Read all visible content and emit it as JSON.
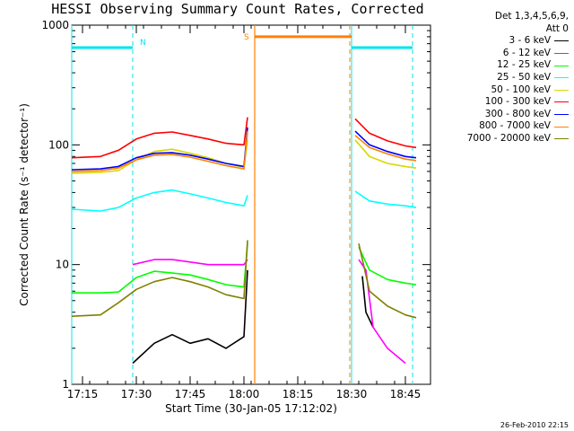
{
  "chart_data": {
    "type": "line",
    "title": "HESSI Observing Summary Count Rates, Corrected",
    "xlabel": "Start Time (30-Jan-05 17:12:02)",
    "ylabel": "Corrected Count Rate (s⁻¹ detector⁻¹)",
    "yscale": "log",
    "ylim": [
      1,
      1000
    ],
    "xlim": [
      "17:12",
      "18:52"
    ],
    "x_ticks": [
      "17:15",
      "17:30",
      "17:45",
      "18:00",
      "18:15",
      "18:30",
      "18:45"
    ],
    "y_ticks": [
      "1",
      "10",
      "100",
      "1000"
    ],
    "legend_header": [
      "Det 1,3,4,5,6,9,",
      "Att 0"
    ],
    "legend_position": "right",
    "data_gap": [
      "18:03",
      "18:31"
    ],
    "series": [
      {
        "name": "3 - 6 keV",
        "color": "#000000",
        "x": [
          "17:29",
          "17:35",
          "17:40",
          "17:45",
          "17:50",
          "17:55",
          "18:00",
          "18:01",
          "18:33",
          "18:34",
          "18:36"
        ],
        "values": [
          1.5,
          2.2,
          2.6,
          2.2,
          2.4,
          2.0,
          2.5,
          9,
          8,
          4,
          3
        ]
      },
      {
        "name": "6 - 12 keV",
        "color": "#ff00ff",
        "x": [
          "17:29",
          "17:35",
          "17:40",
          "17:45",
          "17:50",
          "17:55",
          "18:00",
          "18:01",
          "18:32",
          "18:34",
          "18:36",
          "18:40",
          "18:45"
        ],
        "values": [
          10,
          11,
          11,
          10.5,
          10,
          10,
          10,
          11,
          11,
          9,
          3,
          2,
          1.5
        ]
      },
      {
        "name": "12 - 25 keV",
        "color": "#00ff00",
        "x": [
          "17:12",
          "17:20",
          "17:25",
          "17:30",
          "17:35",
          "17:40",
          "17:45",
          "17:50",
          "17:55",
          "18:00",
          "18:01",
          "18:32",
          "18:35",
          "18:40",
          "18:45",
          "18:48"
        ],
        "values": [
          5.8,
          5.8,
          5.9,
          7.8,
          8.8,
          8.5,
          8.2,
          7.5,
          6.8,
          6.5,
          15,
          14,
          9,
          7.5,
          7,
          6.8
        ]
      },
      {
        "name": "25 - 50 keV",
        "color": "#00ffff",
        "x": [
          "17:12",
          "17:20",
          "17:25",
          "17:30",
          "17:35",
          "17:40",
          "17:45",
          "17:50",
          "17:55",
          "18:00",
          "18:01",
          "18:31",
          "18:35",
          "18:40",
          "18:45",
          "18:48"
        ],
        "values": [
          29,
          28,
          30,
          36,
          40,
          42,
          39,
          36,
          33,
          31,
          38,
          41,
          34,
          32,
          31,
          30
        ]
      },
      {
        "name": "50 - 100 keV",
        "color": "#d8d800",
        "x": [
          "17:12",
          "17:20",
          "17:25",
          "17:30",
          "17:35",
          "17:40",
          "17:45",
          "17:50",
          "17:55",
          "18:00",
          "18:01",
          "18:31",
          "18:35",
          "18:40",
          "18:45",
          "18:48"
        ],
        "values": [
          58,
          59,
          61,
          75,
          88,
          92,
          85,
          78,
          70,
          65,
          110,
          110,
          80,
          70,
          66,
          64
        ]
      },
      {
        "name": "100 - 300 keV",
        "color": "#ff0000",
        "x": [
          "17:12",
          "17:20",
          "17:25",
          "17:30",
          "17:35",
          "17:40",
          "17:45",
          "17:50",
          "17:55",
          "18:00",
          "18:01",
          "18:31",
          "18:35",
          "18:40",
          "18:45",
          "18:48"
        ],
        "values": [
          78,
          80,
          90,
          112,
          125,
          128,
          120,
          112,
          103,
          100,
          170,
          165,
          125,
          108,
          98,
          95
        ]
      },
      {
        "name": "300 - 800 keV",
        "color": "#0000ff",
        "x": [
          "17:12",
          "17:20",
          "17:25",
          "17:30",
          "17:35",
          "17:40",
          "17:45",
          "17:50",
          "17:55",
          "18:00",
          "18:01",
          "18:31",
          "18:35",
          "18:40",
          "18:45",
          "18:48"
        ],
        "values": [
          62,
          63,
          66,
          78,
          85,
          86,
          82,
          76,
          70,
          66,
          140,
          130,
          100,
          88,
          80,
          78
        ]
      },
      {
        "name": "800 - 7000 keV",
        "color": "#ff8000",
        "x": [
          "17:12",
          "17:20",
          "17:25",
          "17:30",
          "17:35",
          "17:40",
          "17:45",
          "17:50",
          "17:55",
          "18:00",
          "18:01",
          "18:31",
          "18:35",
          "18:40",
          "18:45",
          "18:48"
        ],
        "values": [
          60,
          61,
          64,
          75,
          82,
          83,
          79,
          73,
          67,
          63,
          130,
          120,
          95,
          84,
          76,
          74
        ]
      },
      {
        "name": "7000 - 20000 keV",
        "color": "#808000",
        "x": [
          "17:12",
          "17:20",
          "17:25",
          "17:30",
          "17:35",
          "17:40",
          "17:45",
          "17:50",
          "17:55",
          "18:00",
          "18:01",
          "18:32",
          "18:35",
          "18:40",
          "18:45",
          "18:48"
        ],
        "values": [
          3.7,
          3.8,
          4.8,
          6.2,
          7.2,
          7.8,
          7.2,
          6.5,
          5.6,
          5.2,
          16,
          15,
          6,
          4.5,
          3.8,
          3.6
        ]
      }
    ],
    "annotations": {
      "night_intervals": {
        "label": "N",
        "color": "#00e5ee",
        "intervals": [
          [
            "17:12",
            "17:29"
          ],
          [
            "18:30",
            "18:47"
          ]
        ],
        "level": 650
      },
      "saa_interval": {
        "label": "S",
        "color": "#ff8000",
        "interval": [
          "18:03",
          "18:30"
        ],
        "level": 800
      }
    }
  },
  "footer_text": "26-Feb-2010 22:15"
}
